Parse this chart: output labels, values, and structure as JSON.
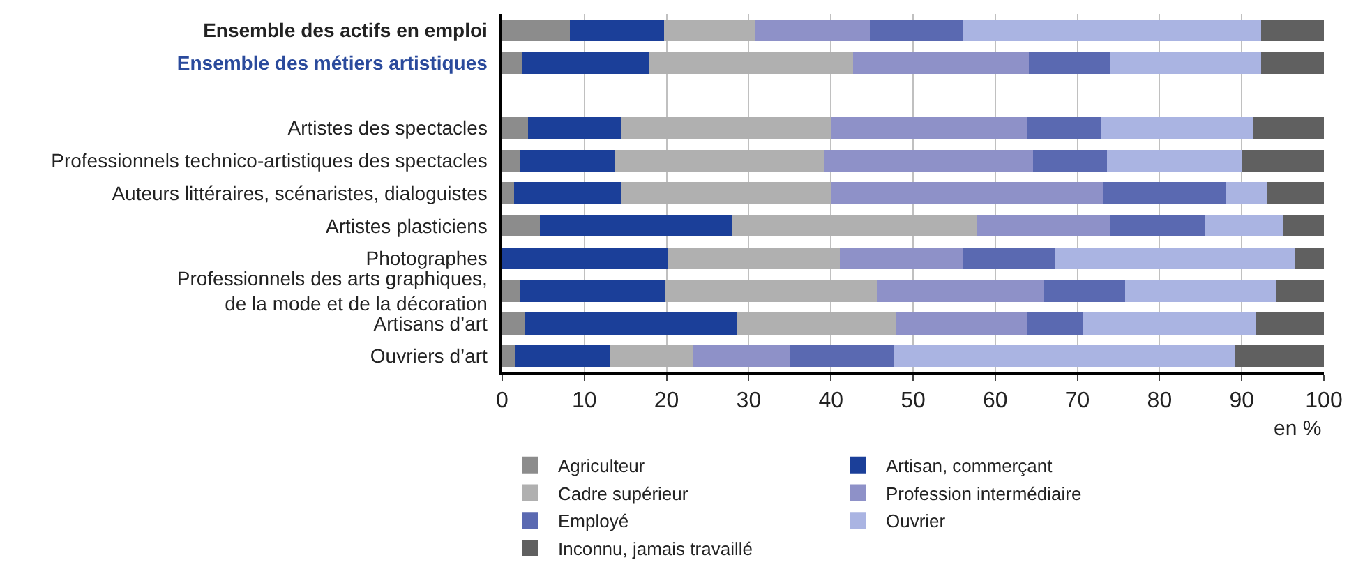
{
  "chart_data": {
    "type": "bar",
    "orientation": "horizontal",
    "stacked": true,
    "categories": [
      "Ensemble des actifs en emploi",
      "Ensemble des métiers artistiques",
      null,
      "Artistes des spectacles",
      "Professionnels technico-artistiques des spectacles",
      "Auteurs littéraires, scénaristes, dialoguistes",
      "Artistes plasticiens",
      "Photographes",
      "Professionnels des arts graphiques,\nde la mode et de la décoration",
      "Artisans d’art",
      "Ouvriers d’art"
    ],
    "series": [
      {
        "name": "Agriculteur",
        "color": "#8c8c8c",
        "values": [
          8.2,
          2.4,
          null,
          3.1,
          2.2,
          1.4,
          4.6,
          null,
          2.2,
          2.8,
          1.6
        ]
      },
      {
        "name": "Artisan, commerçant",
        "color": "#1b3f99",
        "values": [
          11.5,
          15.4,
          null,
          11.3,
          11.5,
          13.0,
          23.3,
          20.2,
          17.7,
          25.8,
          11.5
        ]
      },
      {
        "name": "Cadre supérieur",
        "color": "#b0b0b0",
        "values": [
          11.0,
          24.9,
          null,
          25.6,
          25.4,
          25.6,
          29.8,
          20.9,
          25.7,
          19.4,
          10.1
        ]
      },
      {
        "name": "Profession intermédiaire",
        "color": "#8e91c8",
        "values": [
          14.0,
          21.4,
          null,
          23.9,
          25.5,
          33.2,
          16.3,
          14.9,
          20.4,
          15.9,
          11.8
        ]
      },
      {
        "name": "Employé",
        "color": "#5a69b1",
        "values": [
          11.3,
          9.8,
          null,
          8.9,
          9.0,
          14.9,
          11.5,
          11.3,
          9.8,
          6.8,
          12.7
        ]
      },
      {
        "name": "Ouvrier",
        "color": "#aab4e2",
        "values": [
          36.4,
          18.5,
          null,
          18.5,
          16.4,
          4.9,
          9.6,
          29.2,
          18.3,
          21.1,
          41.4
        ]
      },
      {
        "name": "Inconnu, jamais travaillé",
        "color": "#606060",
        "values": [
          7.6,
          7.6,
          null,
          8.7,
          10.0,
          7.0,
          4.9,
          3.5,
          5.9,
          8.2,
          10.9
        ]
      }
    ],
    "xlim": [
      0,
      100
    ],
    "xticks": [
      0,
      10,
      20,
      30,
      40,
      50,
      60,
      70,
      80,
      90,
      100
    ],
    "xlabel": "en %",
    "grid": "x",
    "legend": "bottom"
  }
}
